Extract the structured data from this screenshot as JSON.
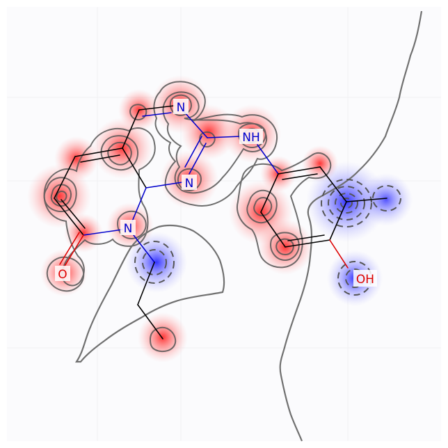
{
  "diagram": {
    "type": "molecule-similarity-map",
    "colors": {
      "positive": "#ff3c3c",
      "negative": "#3c3cff",
      "bond": "#000000",
      "nitrogen": "#0000cc",
      "oxygen": "#dd0000",
      "contour": "#555555",
      "background": "#ffffff"
    },
    "atom_labels": {
      "n_top": "N",
      "nh": "NH",
      "n_mid": "N",
      "n_ring": "N",
      "o_carbonyl": "O",
      "oh": "OH"
    }
  }
}
